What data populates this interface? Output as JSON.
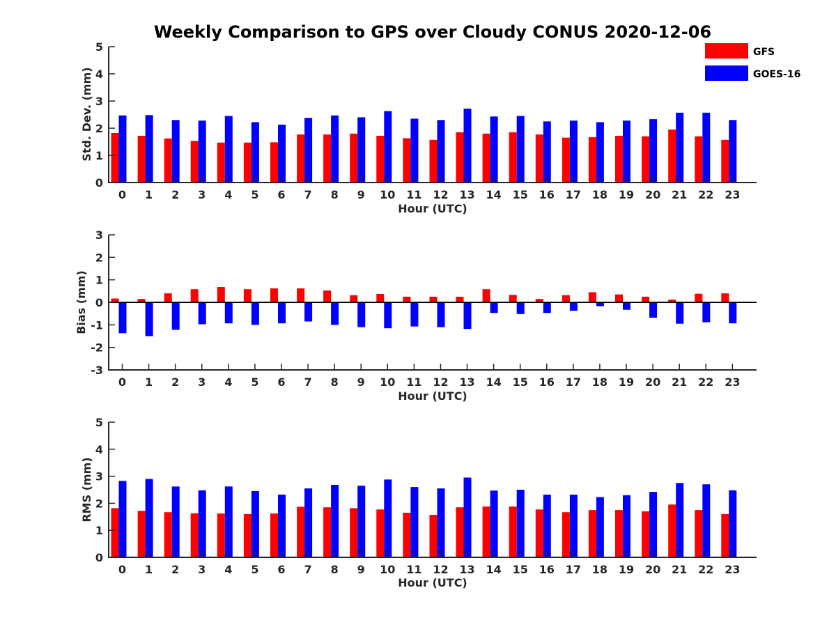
{
  "title": "Weekly Comparison to GPS over Cloudy CONUS 2020-12-06",
  "legend": {
    "placement": "top-right",
    "entries": [
      {
        "name": "GFS",
        "color": "#ff0000"
      },
      {
        "name": "GOES-16",
        "color": "#0000ff"
      }
    ]
  },
  "chart_data": [
    {
      "type": "bar",
      "xlabel": "Hour (UTC)",
      "ylabel": "Std. Dev. (mm)",
      "ylim": [
        0,
        5
      ],
      "yticks": [
        0,
        1,
        2,
        3,
        4,
        5
      ],
      "categories": [
        0,
        1,
        2,
        3,
        4,
        5,
        6,
        7,
        8,
        9,
        10,
        11,
        12,
        13,
        14,
        15,
        16,
        17,
        18,
        19,
        20,
        21,
        22,
        23
      ],
      "series": [
        {
          "name": "GFS",
          "color": "#ff0000",
          "values": [
            1.82,
            1.72,
            1.62,
            1.53,
            1.47,
            1.47,
            1.48,
            1.77,
            1.77,
            1.8,
            1.72,
            1.63,
            1.57,
            1.85,
            1.8,
            1.85,
            1.77,
            1.65,
            1.67,
            1.72,
            1.7,
            1.95,
            1.7,
            1.57
          ]
        },
        {
          "name": "GOES-16",
          "color": "#0000ff",
          "values": [
            2.47,
            2.48,
            2.3,
            2.28,
            2.45,
            2.22,
            2.13,
            2.38,
            2.47,
            2.4,
            2.63,
            2.35,
            2.3,
            2.72,
            2.43,
            2.45,
            2.25,
            2.28,
            2.22,
            2.28,
            2.33,
            2.57,
            2.57,
            2.3
          ]
        }
      ]
    },
    {
      "type": "bar",
      "xlabel": "Hour (UTC)",
      "ylabel": "Bias (mm)",
      "ylim": [
        -3,
        3
      ],
      "yticks": [
        -3,
        -2,
        -1,
        0,
        1,
        2,
        3
      ],
      "zeroline": true,
      "categories": [
        0,
        1,
        2,
        3,
        4,
        5,
        6,
        7,
        8,
        9,
        10,
        11,
        12,
        13,
        14,
        15,
        16,
        17,
        18,
        19,
        20,
        21,
        22,
        23
      ],
      "series": [
        {
          "name": "GFS",
          "color": "#ff0000",
          "values": [
            0.17,
            0.15,
            0.4,
            0.58,
            0.68,
            0.58,
            0.62,
            0.62,
            0.53,
            0.32,
            0.37,
            0.25,
            0.25,
            0.25,
            0.58,
            0.33,
            0.15,
            0.32,
            0.45,
            0.35,
            0.25,
            0.12,
            0.38,
            0.4
          ]
        },
        {
          "name": "GOES-16",
          "color": "#0000ff",
          "values": [
            -1.37,
            -1.5,
            -1.22,
            -0.97,
            -0.93,
            -1.0,
            -0.93,
            -0.85,
            -1.0,
            -1.1,
            -1.15,
            -1.07,
            -1.1,
            -1.18,
            -0.47,
            -0.52,
            -0.47,
            -0.37,
            -0.17,
            -0.33,
            -0.68,
            -0.95,
            -0.88,
            -0.93
          ]
        }
      ]
    },
    {
      "type": "bar",
      "xlabel": "Hour (UTC)",
      "ylabel": "RMS (mm)",
      "ylim": [
        0,
        5
      ],
      "yticks": [
        0,
        1,
        2,
        3,
        4,
        5
      ],
      "categories": [
        0,
        1,
        2,
        3,
        4,
        5,
        6,
        7,
        8,
        9,
        10,
        11,
        12,
        13,
        14,
        15,
        16,
        17,
        18,
        19,
        20,
        21,
        22,
        23
      ],
      "series": [
        {
          "name": "GFS",
          "color": "#ff0000",
          "values": [
            1.82,
            1.72,
            1.67,
            1.63,
            1.62,
            1.6,
            1.62,
            1.87,
            1.85,
            1.82,
            1.77,
            1.65,
            1.57,
            1.85,
            1.88,
            1.88,
            1.77,
            1.67,
            1.75,
            1.75,
            1.7,
            1.95,
            1.75,
            1.6
          ]
        },
        {
          "name": "GOES-16",
          "color": "#0000ff",
          "values": [
            2.83,
            2.9,
            2.62,
            2.48,
            2.62,
            2.45,
            2.32,
            2.55,
            2.68,
            2.65,
            2.88,
            2.6,
            2.55,
            2.95,
            2.47,
            2.5,
            2.32,
            2.32,
            2.23,
            2.3,
            2.42,
            2.75,
            2.7,
            2.48
          ]
        }
      ]
    }
  ]
}
